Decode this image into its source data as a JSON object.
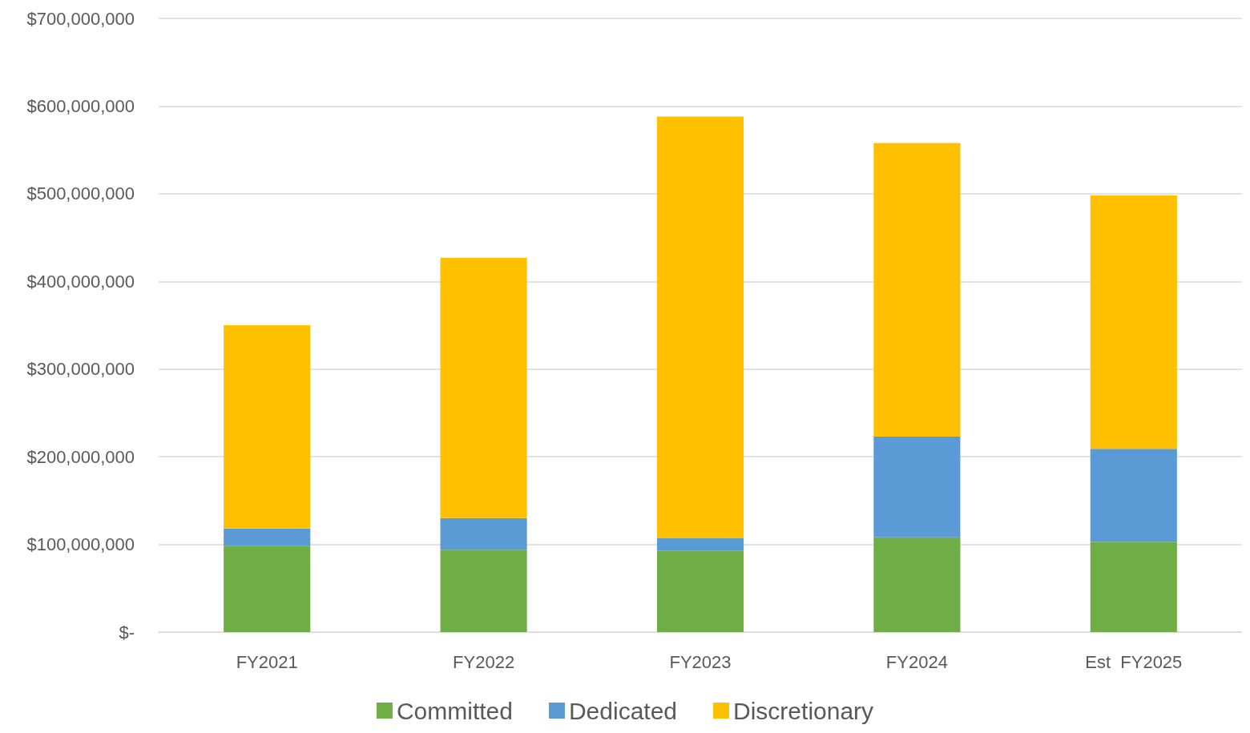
{
  "chart_data": {
    "type": "bar",
    "stacked": true,
    "categories": [
      "FY2021",
      "FY2022",
      "FY2023",
      "FY2024",
      "Est  FY2025"
    ],
    "series": [
      {
        "name": "Committed",
        "color": "#70ad47",
        "values": [
          98000000,
          94000000,
          93000000,
          108000000,
          103000000
        ]
      },
      {
        "name": "Dedicated",
        "color": "#5b9bd5",
        "values": [
          20000000,
          36000000,
          14000000,
          115000000,
          106000000
        ]
      },
      {
        "name": "Discretionary",
        "color": "#ffc000",
        "values": [
          232000000,
          297000000,
          481000000,
          335000000,
          289000000
        ]
      }
    ],
    "ylim": [
      0,
      700000000
    ],
    "yticks": [
      {
        "value": 0,
        "label": "$-"
      },
      {
        "value": 100000000,
        "label": "$100,000,000"
      },
      {
        "value": 200000000,
        "label": "$200,000,000"
      },
      {
        "value": 300000000,
        "label": "$300,000,000"
      },
      {
        "value": 400000000,
        "label": "$400,000,000"
      },
      {
        "value": 500000000,
        "label": "$500,000,000"
      },
      {
        "value": 600000000,
        "label": "$600,000,000"
      },
      {
        "value": 700000000,
        "label": "$700,000,000"
      }
    ],
    "grid": "y",
    "legend": "bottom"
  }
}
